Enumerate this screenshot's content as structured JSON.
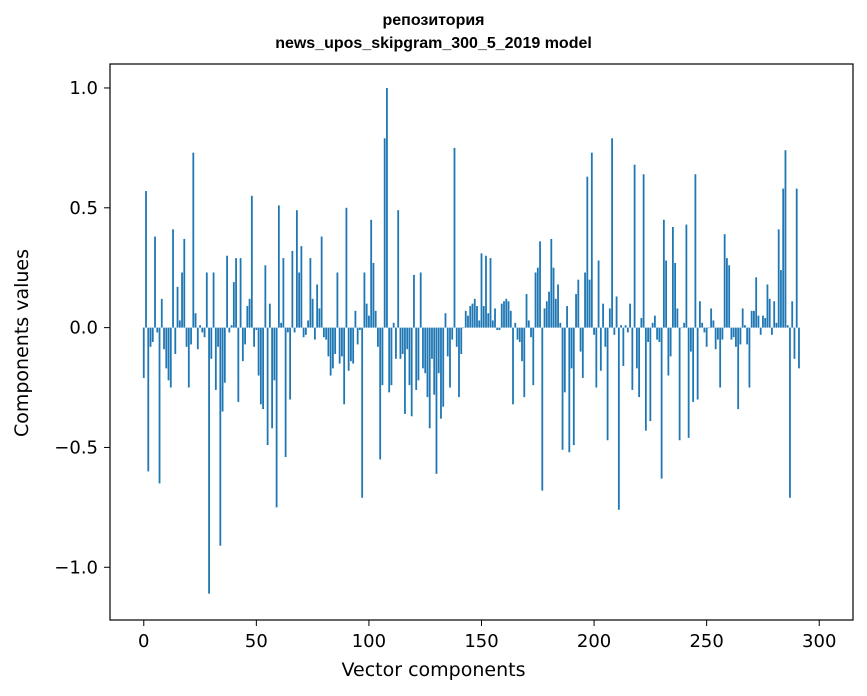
{
  "chart_data": {
    "type": "bar",
    "title_line1": "репозитория",
    "title_line2": "news_upos_skipgram_300_5_2019 model",
    "xlabel": "Vector components",
    "ylabel": "Components values",
    "xlim": [
      -15,
      315
    ],
    "ylim": [
      -1.22,
      1.1
    ],
    "xticks": [
      0,
      50,
      100,
      150,
      200,
      250,
      300
    ],
    "xtick_labels": [
      "0",
      "50",
      "100",
      "150",
      "200",
      "250",
      "300"
    ],
    "yticks": [
      -1.0,
      -0.5,
      0.0,
      0.5,
      1.0
    ],
    "ytick_labels": [
      "−1.0",
      "−0.5",
      "0.0",
      "0.5",
      "1.0"
    ],
    "bar_color": "#1f77b4",
    "grid": false,
    "values": [
      -0.21,
      0.57,
      -0.6,
      -0.08,
      -0.06,
      0.38,
      -0.02,
      -0.65,
      0.12,
      -0.09,
      -0.17,
      -0.22,
      -0.25,
      0.41,
      -0.11,
      0.17,
      0.03,
      0.23,
      0.37,
      -0.08,
      -0.25,
      -0.07,
      0.73,
      0.06,
      -0.09,
      0.01,
      -0.02,
      -0.04,
      0.23,
      -1.11,
      -0.13,
      0.23,
      -0.26,
      -0.08,
      -0.91,
      -0.35,
      -0.23,
      0.3,
      -0.02,
      0.01,
      0.19,
      0.29,
      -0.31,
      0.29,
      -0.14,
      -0.07,
      0.09,
      0.12,
      0.55,
      -0.08,
      -0.01,
      -0.2,
      -0.32,
      -0.34,
      0.26,
      -0.49,
      0.1,
      -0.42,
      -0.22,
      -0.75,
      0.51,
      0.02,
      0.29,
      -0.54,
      -0.02,
      -0.3,
      0.32,
      -0.02,
      0.49,
      0.23,
      0.34,
      -0.04,
      -0.03,
      0.03,
      0.29,
      0.12,
      -0.05,
      0.18,
      0.08,
      0.38,
      -0.04,
      -0.05,
      -0.12,
      -0.2,
      -0.17,
      -0.11,
      0.23,
      -0.15,
      -0.12,
      -0.32,
      0.5,
      -0.18,
      -0.14,
      -0.15,
      0.07,
      -0.07,
      -0.01,
      -0.71,
      0.23,
      0.1,
      0.05,
      0.45,
      0.27,
      0.07,
      -0.08,
      -0.55,
      -0.24,
      0.79,
      1.0,
      -0.27,
      -0.24,
      0.02,
      -0.13,
      0.49,
      -0.13,
      -0.11,
      -0.36,
      -0.09,
      -0.24,
      -0.37,
      0.22,
      -0.26,
      -0.22,
      0.23,
      -0.17,
      -0.19,
      -0.29,
      -0.42,
      -0.13,
      -0.28,
      -0.61,
      -0.19,
      -0.38,
      -0.33,
      0.06,
      -0.12,
      -0.25,
      -0.05,
      0.75,
      -0.08,
      -0.29,
      -0.11,
      0.0,
      0.07,
      0.05,
      0.09,
      0.1,
      0.12,
      0.09,
      0.03,
      0.31,
      0.09,
      0.3,
      0.06,
      0.29,
      0.03,
      0.08,
      -0.01,
      -0.01,
      0.1,
      0.11,
      0.12,
      0.11,
      0.07,
      -0.32,
      0.02,
      -0.05,
      -0.06,
      -0.14,
      -0.29,
      0.14,
      0.03,
      -0.04,
      -0.24,
      0.23,
      0.25,
      0.36,
      -0.68,
      0.08,
      0.11,
      0.15,
      0.37,
      0.25,
      0.12,
      0.18,
      0.02,
      -0.51,
      -0.27,
      0.09,
      -0.52,
      -0.17,
      -0.49,
      0.14,
      0.2,
      -0.1,
      -0.21,
      0.23,
      0.63,
      0.2,
      0.73,
      -0.03,
      -0.25,
      0.28,
      -0.18,
      0.1,
      -0.08,
      -0.47,
      0.08,
      0.79,
      -0.03,
      0.13,
      -0.76,
      0.01,
      -0.16,
      0.01,
      -0.02,
      0.1,
      -0.26,
      0.68,
      -0.17,
      -0.29,
      0.04,
      0.64,
      -0.43,
      -0.06,
      -0.39,
      0.02,
      0.05,
      -0.05,
      -0.06,
      -0.63,
      0.45,
      0.28,
      -0.2,
      -0.12,
      0.42,
      0.27,
      0.08,
      -0.47,
      0.0,
      0.02,
      0.43,
      -0.46,
      -0.1,
      -0.31,
      0.64,
      -0.3,
      0.11,
      0.02,
      -0.02,
      -0.08,
      0.0,
      0.08,
      0.03,
      -0.09,
      -0.05,
      -0.25,
      -0.05,
      0.39,
      0.29,
      0.26,
      -0.05,
      -0.04,
      -0.08,
      -0.34,
      -0.07,
      0.08,
      0.01,
      -0.07,
      -0.25,
      0.07,
      0.07,
      0.21,
      0.05,
      -0.03,
      0.05,
      0.04,
      0.18,
      0.12,
      -0.03,
      0.11,
      0.02,
      0.41,
      0.24,
      0.58,
      0.74,
      0.01,
      -0.71,
      0.11,
      -0.13,
      0.58,
      -0.17
    ]
  }
}
